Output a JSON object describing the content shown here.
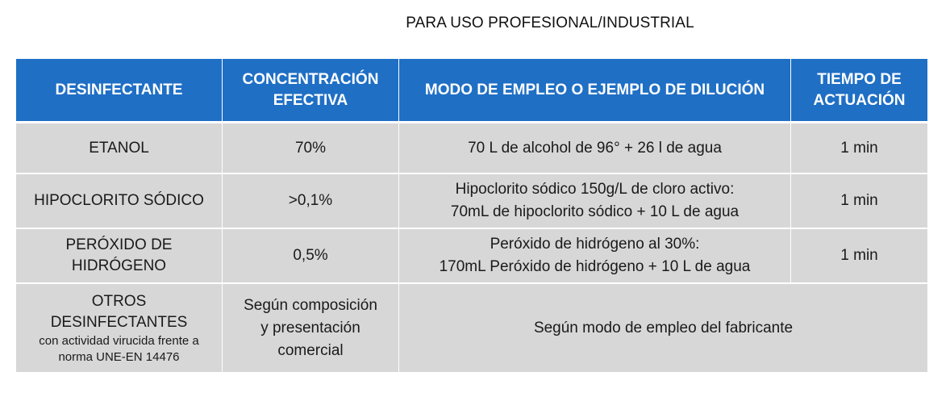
{
  "header": {
    "title": "PARA USO PROFESIONAL/INDUSTRIAL"
  },
  "table": {
    "columns": [
      [
        "DESINFECTANTE"
      ],
      [
        "CONCENTRACIÓN",
        "EFECTIVA"
      ],
      [
        "MODO DE EMPLEO O EJEMPLO DE DILUCIÓN"
      ],
      [
        "TIEMPO DE",
        "ACTUACIÓN"
      ]
    ],
    "rows": [
      {
        "disinfectant": [
          "ETANOL"
        ],
        "concentration": [
          "70%"
        ],
        "usage": [
          "70 L de alcohol de 96° + 26 l de agua"
        ],
        "time": "1 min"
      },
      {
        "disinfectant": [
          "HIPOCLORITO SÓDICO"
        ],
        "concentration": [
          ">0,1%"
        ],
        "usage": [
          "Hipoclorito sódico 150g/L de cloro activo:",
          "70mL de hipoclorito sódico + 10 L de agua"
        ],
        "time": "1 min"
      },
      {
        "disinfectant": [
          "PERÓXIDO DE",
          "HIDRÓGENO"
        ],
        "concentration": [
          "0,5%"
        ],
        "usage": [
          "Peróxido de hidrógeno al 30%:",
          "170mL Peróxido de hidrógeno + 10 L de agua"
        ],
        "time": "1 min"
      },
      {
        "disinfectant": [
          "OTROS",
          "DESINFECTANTES"
        ],
        "disinfectant_note": [
          "con actividad virucida frente a",
          "norma UNE-EN 14476"
        ],
        "concentration": [
          "Según composición",
          "y presentación",
          "comercial"
        ],
        "usage_merged": "Según modo de empleo del fabricante"
      }
    ]
  },
  "colors": {
    "header_bg": "#1f6fc5",
    "header_text": "#ffffff",
    "body_bg": "#d7d7d7"
  }
}
